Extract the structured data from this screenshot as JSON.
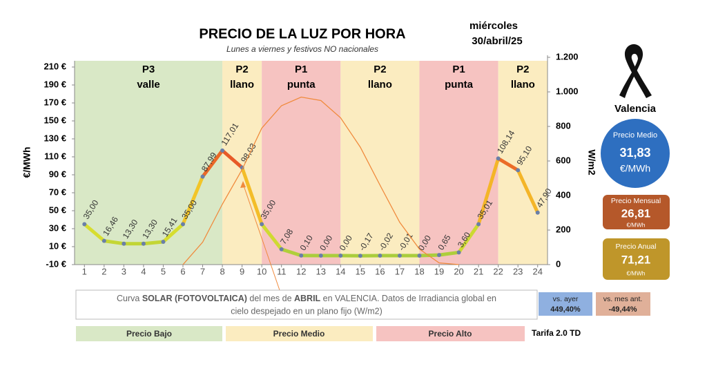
{
  "chart_data": {
    "type": "line",
    "title": "PRECIO DE LA LUZ POR HORA",
    "subtitle": "Lunes a viernes y festivos NO nacionales",
    "y_label": "€/MWh",
    "y2_label": "W/m2",
    "x": [
      1,
      2,
      3,
      4,
      5,
      6,
      7,
      8,
      9,
      10,
      11,
      12,
      13,
      14,
      15,
      16,
      17,
      18,
      19,
      20,
      21,
      22,
      23,
      24
    ],
    "xlim": [
      0.5,
      24.5
    ],
    "ylim": [
      -10,
      210
    ],
    "yticks": [
      {
        "value": -10,
        "label": "-10 €"
      },
      {
        "value": 10,
        "label": "10 €"
      },
      {
        "value": 30,
        "label": "30 €"
      },
      {
        "value": 50,
        "label": "50 €"
      },
      {
        "value": 70,
        "label": "70 €"
      },
      {
        "value": 90,
        "label": "90 €"
      },
      {
        "value": 110,
        "label": "110 €"
      },
      {
        "value": 130,
        "label": "130 €"
      },
      {
        "value": 150,
        "label": "150 €"
      },
      {
        "value": 170,
        "label": "170 €"
      },
      {
        "value": 190,
        "label": "190 €"
      },
      {
        "value": 210,
        "label": "210 €"
      }
    ],
    "y2lim": [
      0,
      1200
    ],
    "y2ticks": [
      0,
      200,
      400,
      600,
      800,
      {
        "value": 1000,
        "label": "1.000"
      },
      {
        "value": 1200,
        "label": "1.200"
      }
    ],
    "periods": [
      {
        "label": "P3",
        "sublabel": "valle",
        "from": 0.5,
        "to": 8,
        "color": "#d9e8c6"
      },
      {
        "label": "P2",
        "sublabel": "llano",
        "from": 8,
        "to": 10,
        "color": "#fbecc0"
      },
      {
        "label": "P1",
        "sublabel": "punta",
        "from": 10,
        "to": 14,
        "color": "#f6c3c1"
      },
      {
        "label": "P2",
        "sublabel": "llano",
        "from": 14,
        "to": 18,
        "color": "#fbecc0"
      },
      {
        "label": "P1",
        "sublabel": "punta",
        "from": 18,
        "to": 22,
        "color": "#f6c3c1"
      },
      {
        "label": "P2",
        "sublabel": "llano",
        "from": 22,
        "to": 24.5,
        "color": "#fbecc0"
      }
    ],
    "series": [
      {
        "color": "#6a7fa8",
        "values": [
          35.0,
          16.46,
          13.3,
          13.3,
          15.41,
          35.0,
          87.99,
          117.01,
          98.03,
          35.0,
          7.08,
          0.1,
          0.0,
          0.0,
          -0.17,
          -0.02,
          -0.01,
          0.0,
          0.65,
          3.6,
          35.01,
          108.14,
          95.1,
          47.9
        ],
        "value_labels": [
          "35,00",
          "16,46",
          "13,30",
          "13,30",
          "15,41",
          "35,00",
          "87,99",
          "117,01",
          "98,03",
          "35,00",
          "7,08",
          "0,10",
          "0,00",
          "0,00",
          "-0,17",
          "-0,02",
          "-0,01",
          "0,00",
          "0,65",
          "3,60",
          "35,01",
          "108,14",
          "95,10",
          "47,90"
        ]
      },
      {
        "color": "#f08a3c",
        "axis": "y2",
        "values": [
          null,
          null,
          null,
          null,
          null,
          0,
          130,
          350,
          550,
          790,
          920,
          970,
          950,
          850,
          680,
          460,
          245,
          90,
          10,
          0,
          null,
          null,
          null,
          null
        ]
      }
    ]
  },
  "date": {
    "weekday": "miércoles",
    "day": "30/abril/25"
  },
  "panel": {
    "city": "Valencia",
    "items": [
      {
        "label": "Precio Medio",
        "value": "31,83",
        "unit": "€/MWh"
      },
      {
        "label": "Precio Mensual",
        "value": "26,81",
        "unit": "€/MWh"
      },
      {
        "label": "Precio Anual",
        "value": "71,21",
        "unit": "€/MWh"
      }
    ],
    "changes": [
      {
        "label": "vs. ayer",
        "value": "449,40%"
      },
      {
        "label": "vs. mes ant.",
        "value": "-49,44%"
      }
    ]
  },
  "note": [
    "Curva ",
    "SOLAR (FOTOVOLTAICA)",
    " del mes de ",
    "ABRIL",
    " en VALENCIA. Datos de Irradiancia global en",
    "cielo despejado en un plano fijo (W/m2)"
  ],
  "legend": [
    "Precio Bajo",
    "Precio Medio",
    "Precio Alto"
  ],
  "tariff": "Tarifa 2.0 TD"
}
